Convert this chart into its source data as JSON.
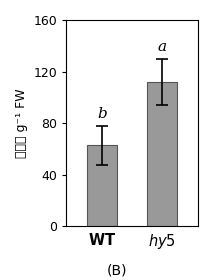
{
  "categories": [
    "WT",
    "hy5"
  ],
  "values": [
    63,
    112
  ],
  "errors": [
    15,
    18
  ],
  "bar_color": "#999999",
  "bar_edge_color": "#555555",
  "sig_labels": [
    "b",
    "a"
  ],
  "ylabel": "根结数 g⁻¹ FW",
  "ylim": [
    0,
    160
  ],
  "yticks": [
    0,
    40,
    80,
    120,
    160
  ],
  "caption": "(B)",
  "bar_width": 0.5,
  "figsize": [
    2.13,
    2.8
  ],
  "dpi": 100
}
